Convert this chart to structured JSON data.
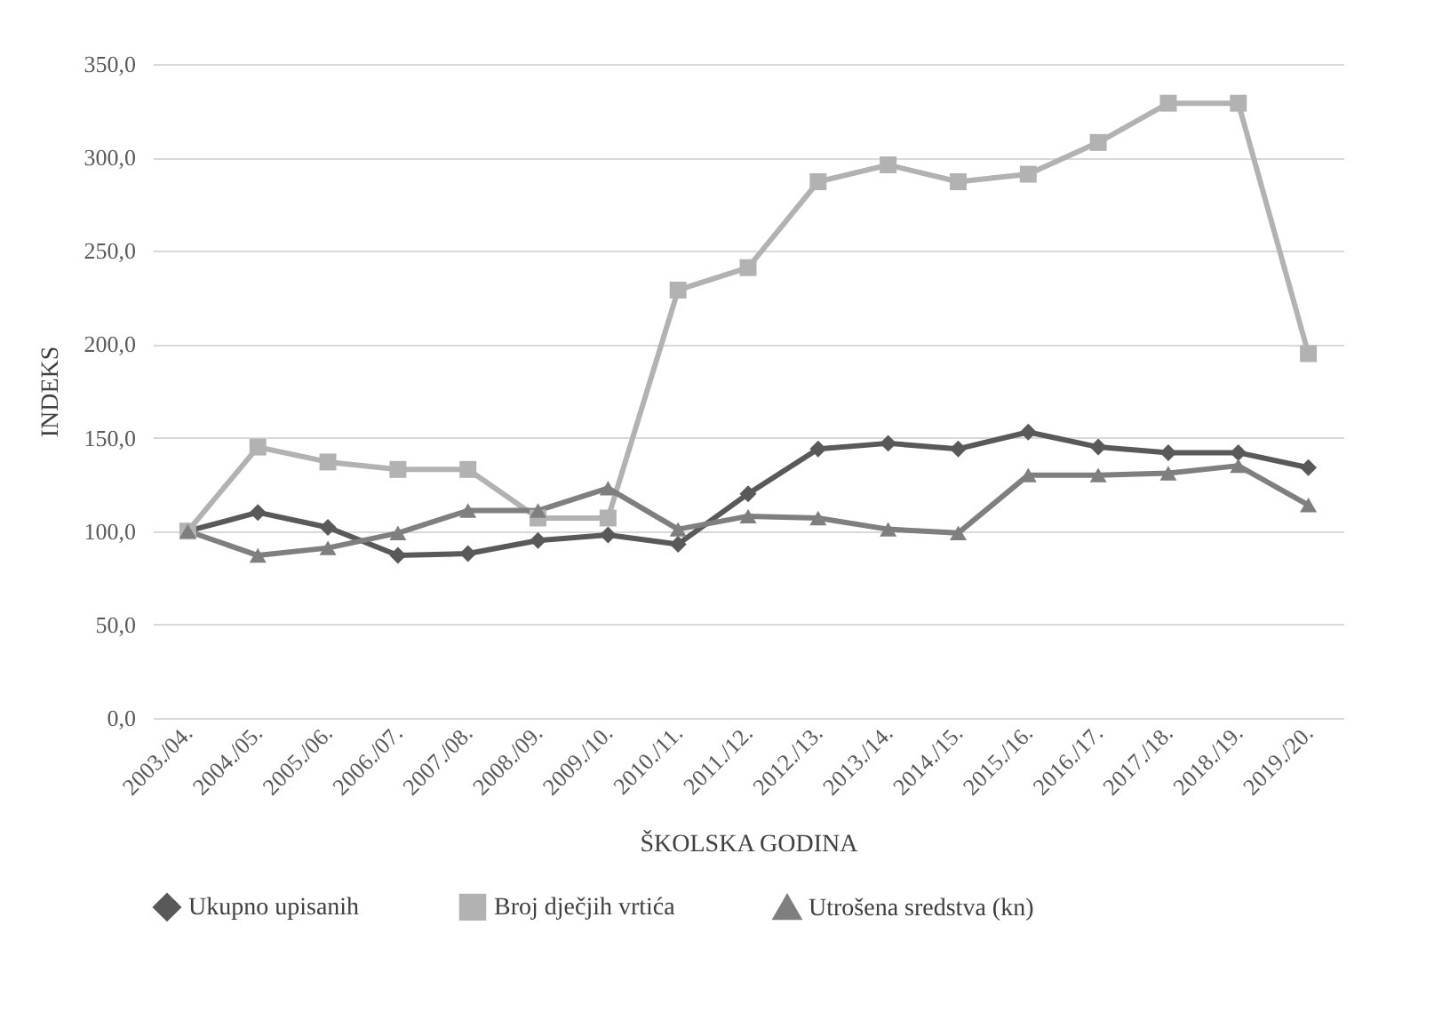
{
  "chart_data": {
    "type": "line",
    "xlabel": "ŠKOLSKA GODINA",
    "ylabel": "INDEKS",
    "categories": [
      "2003./04.",
      "2004./05.",
      "2005./06.",
      "2006./07.",
      "2007./08.",
      "2008./09.",
      "2009./10.",
      "2010./11.",
      "2011./12.",
      "2012./13.",
      "2013./14.",
      "2014./15.",
      "2015./16.",
      "2016./17.",
      "2017./18.",
      "2018./19.",
      "2019./20."
    ],
    "series": [
      {
        "name": "Ukupno upisanih",
        "color": "#595959",
        "marker": "diamond",
        "values": [
          100,
          110,
          102,
          87,
          88,
          95,
          98,
          93,
          120,
          144,
          147,
          144,
          153,
          145,
          142,
          142,
          134
        ]
      },
      {
        "name": "Broj dječjih vrtića",
        "color": "#b2b2b2",
        "marker": "square",
        "values": [
          100,
          145,
          137,
          133,
          133,
          107,
          107,
          229,
          241,
          287,
          296,
          287,
          291,
          308,
          329,
          329,
          195
        ]
      },
      {
        "name": "Utrošena sredstva (kn)",
        "color": "#7f7f7f",
        "marker": "triangle",
        "values": [
          100,
          87,
          91,
          99,
          111,
          111,
          123,
          101,
          108,
          107,
          101,
          99,
          130,
          130,
          131,
          135,
          114
        ]
      }
    ],
    "ylim": [
      0,
      350
    ],
    "yticks": [
      {
        "value": 0,
        "label": "0,0"
      },
      {
        "value": 50,
        "label": "50,0"
      },
      {
        "value": 100,
        "label": "100,0"
      },
      {
        "value": 150,
        "label": "150,0"
      },
      {
        "value": 200,
        "label": "200,0"
      },
      {
        "value": 250,
        "label": "250,0"
      },
      {
        "value": 300,
        "label": "300,0"
      },
      {
        "value": 350,
        "label": "350,0"
      }
    ],
    "grid": "y",
    "legend": "bottom"
  }
}
